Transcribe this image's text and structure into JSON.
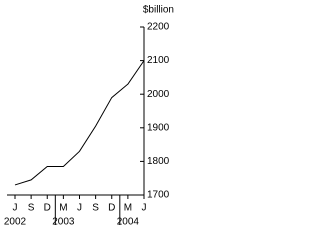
{
  "chart_data": {
    "type": "line",
    "y_unit": "$billion",
    "categories": [
      "J",
      "S",
      "D",
      "M",
      "J",
      "S",
      "D",
      "M",
      "J"
    ],
    "x_groups": [
      {
        "label": "2002",
        "start": 0
      },
      {
        "label": "2003",
        "start": 3
      },
      {
        "label": "2004",
        "start": 7
      }
    ],
    "series": [
      {
        "color": "#000000",
        "values": [
          1730,
          1745,
          1785,
          1785,
          1830,
          1905,
          1990,
          2030,
          2100
        ]
      }
    ],
    "ylim": [
      1700,
      2200
    ],
    "yticks": [
      1700,
      1800,
      1900,
      2000,
      2100,
      2200
    ]
  }
}
